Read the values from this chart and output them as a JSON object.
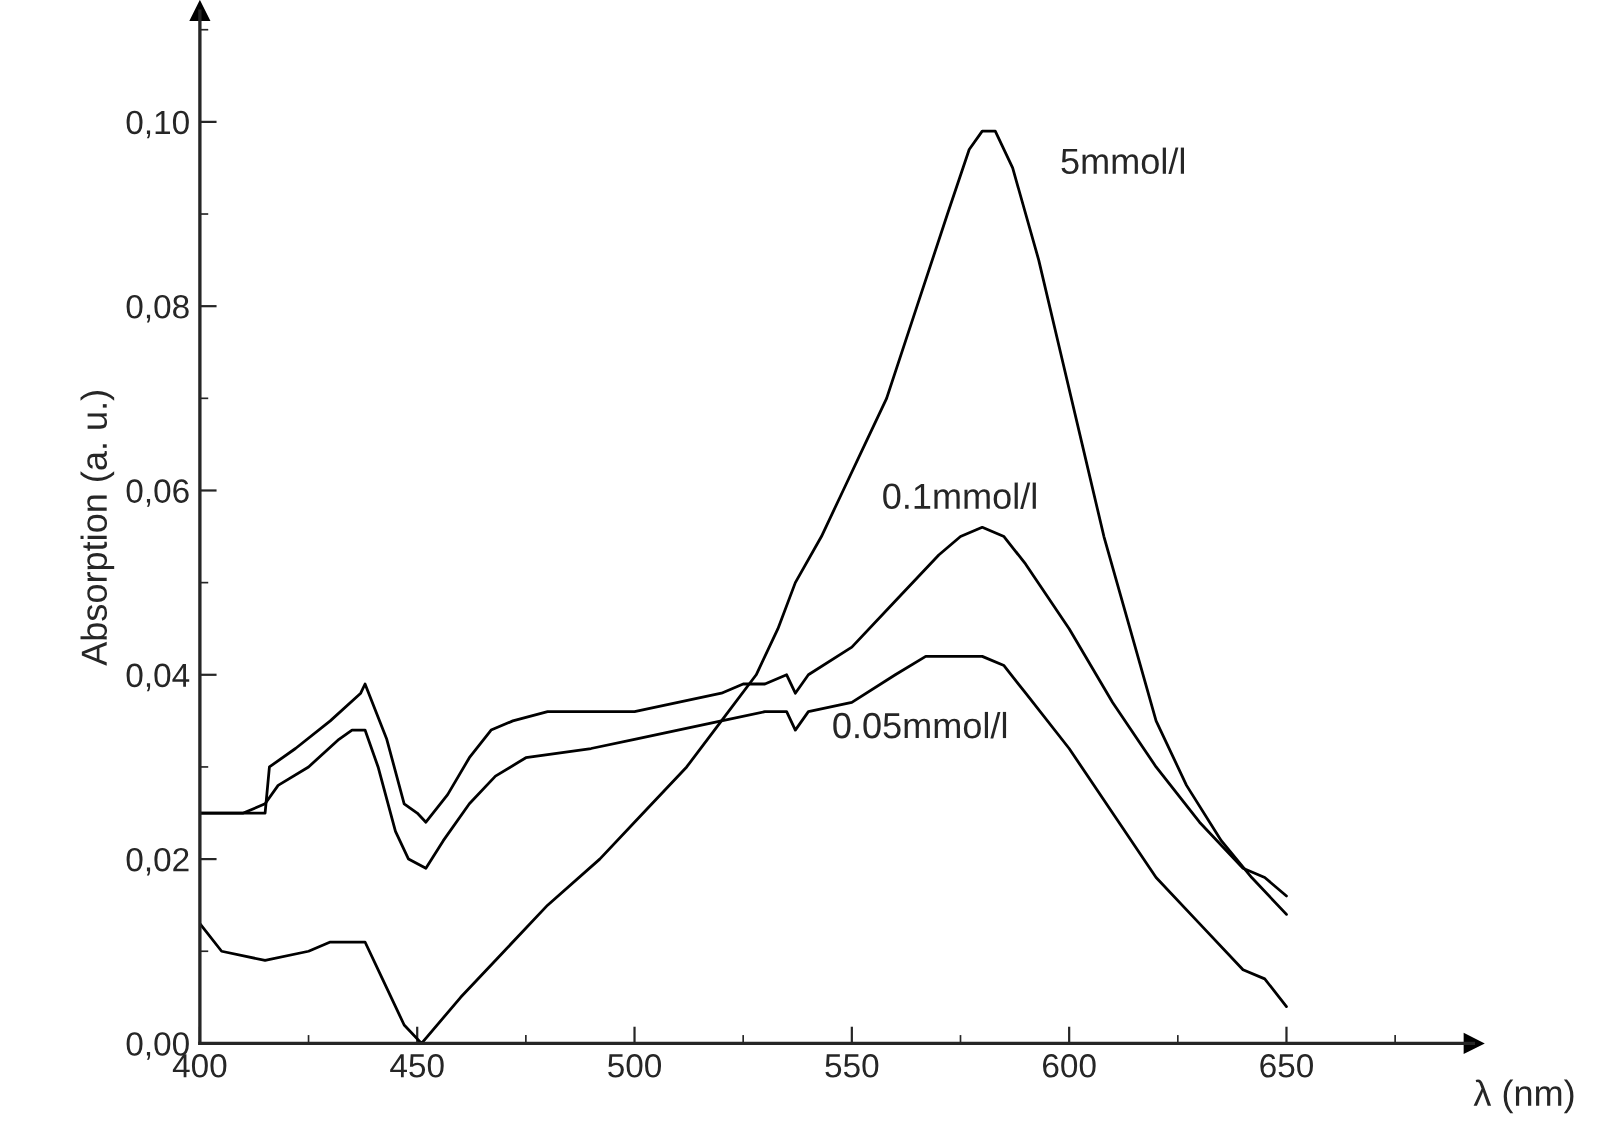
{
  "chart_data": {
    "type": "line",
    "xlabel": "λ (nm)",
    "ylabel": "Absorption (a. u.)",
    "xlim": [
      400,
      693
    ],
    "ylim": [
      0,
      0.112
    ],
    "xticks": [
      400,
      450,
      500,
      550,
      600,
      650
    ],
    "yticks": [
      {
        "value": 0,
        "label": "0,00"
      },
      {
        "value": 0.02,
        "label": "0,02"
      },
      {
        "value": 0.04,
        "label": "0,04"
      },
      {
        "value": 0.06,
        "label": "0,06"
      },
      {
        "value": 0.08,
        "label": "0,08"
      },
      {
        "value": 0.1,
        "label": "0,10"
      }
    ],
    "grid": false,
    "legend": false,
    "marker": "none",
    "line_style": "solid",
    "series": [
      {
        "name": "5mmol/l",
        "color": "#000000",
        "x": [
          400,
          405,
          415,
          425,
          430,
          438,
          442,
          447,
          451,
          460,
          470,
          480,
          492,
          502,
          512,
          520,
          528,
          533,
          537,
          543,
          548,
          553,
          558,
          565,
          572,
          577,
          580,
          583,
          587,
          593,
          598,
          603,
          608,
          614,
          620,
          627,
          635,
          642,
          650
        ],
        "values": [
          0.013,
          0.01,
          0.009,
          0.01,
          0.011,
          0.011,
          0.007,
          0.002,
          0.0,
          0.005,
          0.01,
          0.015,
          0.02,
          0.025,
          0.03,
          0.035,
          0.04,
          0.045,
          0.05,
          0.055,
          0.06,
          0.065,
          0.07,
          0.08,
          0.09,
          0.097,
          0.099,
          0.099,
          0.095,
          0.085,
          0.075,
          0.065,
          0.055,
          0.045,
          0.035,
          0.028,
          0.022,
          0.018,
          0.014
        ]
      },
      {
        "name": "0.1mmol/l",
        "color": "#000000",
        "x": [
          400,
          410,
          415,
          416,
          422,
          430,
          437,
          438,
          443,
          447,
          450,
          452,
          457,
          462,
          467,
          472,
          480,
          500,
          510,
          520,
          525,
          530,
          535,
          537,
          540,
          550,
          560,
          570,
          575,
          580,
          585,
          590,
          600,
          610,
          620,
          630,
          640,
          645,
          650
        ],
        "values": [
          0.025,
          0.025,
          0.025,
          0.03,
          0.032,
          0.035,
          0.038,
          0.039,
          0.033,
          0.026,
          0.025,
          0.024,
          0.027,
          0.031,
          0.034,
          0.035,
          0.036,
          0.036,
          0.037,
          0.038,
          0.039,
          0.039,
          0.04,
          0.038,
          0.04,
          0.043,
          0.048,
          0.053,
          0.055,
          0.056,
          0.055,
          0.052,
          0.045,
          0.037,
          0.03,
          0.024,
          0.019,
          0.018,
          0.016
        ]
      },
      {
        "name": "0.05mmol/l",
        "color": "#000000",
        "x": [
          400,
          410,
          415,
          418,
          425,
          432,
          435,
          438,
          441,
          445,
          448,
          452,
          456,
          462,
          468,
          475,
          490,
          500,
          510,
          520,
          530,
          535,
          537,
          540,
          550,
          560,
          567,
          580,
          585,
          590,
          600,
          610,
          620,
          630,
          640,
          645,
          650
        ],
        "values": [
          0.025,
          0.025,
          0.026,
          0.028,
          0.03,
          0.033,
          0.034,
          0.034,
          0.03,
          0.023,
          0.02,
          0.019,
          0.022,
          0.026,
          0.029,
          0.031,
          0.032,
          0.033,
          0.034,
          0.035,
          0.036,
          0.036,
          0.034,
          0.036,
          0.037,
          0.04,
          0.042,
          0.042,
          0.041,
          0.038,
          0.032,
          0.025,
          0.018,
          0.013,
          0.008,
          0.007,
          0.004
        ]
      }
    ]
  }
}
